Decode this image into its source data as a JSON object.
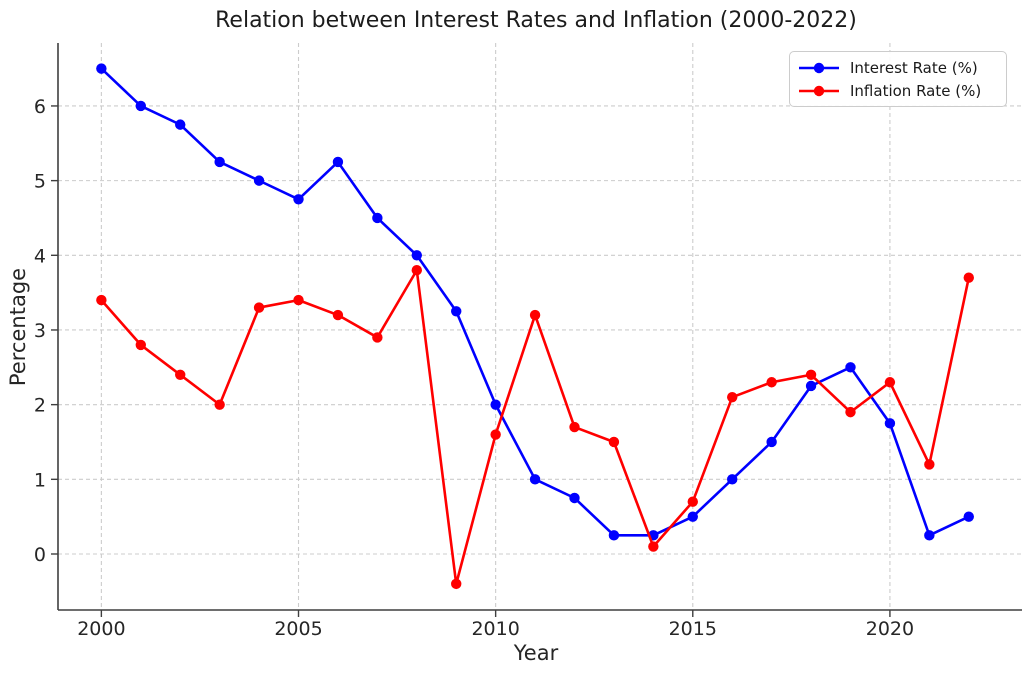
{
  "figure": {
    "background": "#ffffff"
  },
  "chart_data": {
    "type": "line",
    "title": "Relation between Interest Rates and Inflation (2000-2022)",
    "xlabel": "Year",
    "ylabel": "Percentage",
    "x": [
      2000,
      2001,
      2002,
      2003,
      2004,
      2005,
      2006,
      2007,
      2008,
      2009,
      2010,
      2011,
      2012,
      2013,
      2014,
      2015,
      2016,
      2017,
      2018,
      2019,
      2020,
      2021,
      2022
    ],
    "series": [
      {
        "name": "Interest Rate (%)",
        "color": "#0000ff",
        "marker": "circle",
        "values": [
          6.5,
          6.0,
          5.75,
          5.25,
          5.0,
          4.75,
          5.25,
          4.5,
          4.0,
          3.25,
          2.0,
          1.0,
          0.75,
          0.25,
          0.25,
          0.5,
          1.0,
          1.5,
          2.25,
          2.5,
          1.75,
          0.25,
          0.5
        ]
      },
      {
        "name": "Inflation Rate (%)",
        "color": "#ff0000",
        "marker": "circle",
        "values": [
          3.4,
          2.8,
          2.4,
          2.0,
          3.3,
          3.4,
          3.2,
          2.9,
          3.8,
          -0.4,
          1.6,
          3.2,
          1.7,
          1.5,
          0.1,
          0.7,
          2.1,
          2.3,
          2.4,
          1.9,
          2.3,
          1.2,
          3.7
        ]
      }
    ],
    "xticks": [
      2000,
      2005,
      2010,
      2015,
      2020
    ],
    "yticks": [
      0,
      1,
      2,
      3,
      4,
      5,
      6
    ],
    "xlim": [
      1998.9,
      2023.35
    ],
    "ylim": [
      -0.75,
      6.843
    ],
    "grid": true,
    "grid_on": "both",
    "grid_color": "#cccccc",
    "axis_color": "#3f3f3f",
    "text_color": "#262626",
    "legend_position": "upper right"
  }
}
